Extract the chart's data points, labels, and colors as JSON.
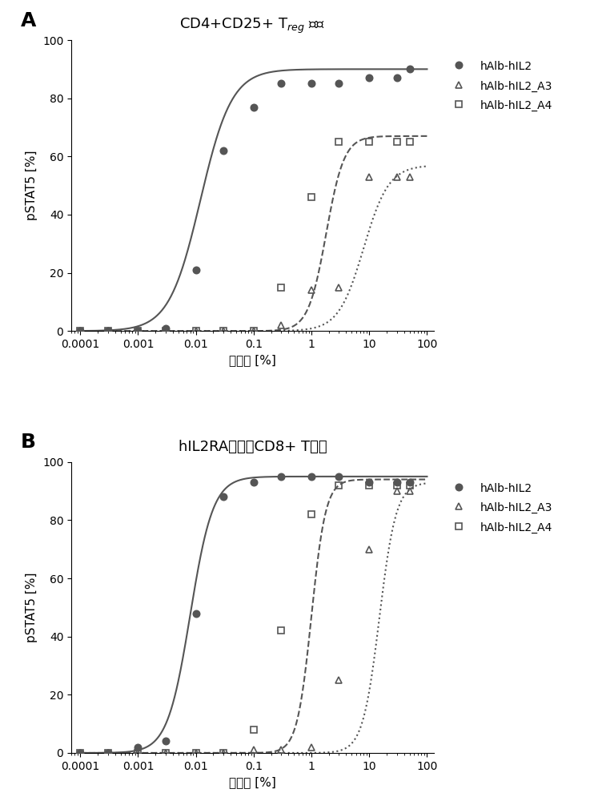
{
  "panel_A": {
    "title_parts": [
      "CD4+CD25+ T",
      "reg",
      " 细胞"
    ],
    "series": [
      {
        "label": "hAlb-hIL2",
        "x": [
          0.0001,
          0.0003,
          0.001,
          0.003,
          0.01,
          0.03,
          0.1,
          0.3,
          1,
          3,
          10,
          30,
          50
        ],
        "y": [
          0,
          0,
          0,
          1,
          21,
          62,
          77,
          85,
          85,
          85,
          87,
          87,
          90
        ],
        "marker": "o",
        "linestyle": "-",
        "color": "#555555",
        "fillstyle": "full",
        "ec50": 0.012,
        "hill": 1.6,
        "bottom": 0,
        "top": 90
      },
      {
        "label": "hAlb-hIL2_A3",
        "x": [
          0.0001,
          0.0003,
          0.001,
          0.003,
          0.01,
          0.03,
          0.1,
          0.3,
          1,
          3,
          10,
          30,
          50
        ],
        "y": [
          0,
          0,
          0,
          0,
          0,
          0,
          0,
          2,
          14,
          15,
          53,
          53,
          53
        ],
        "marker": "^",
        "linestyle": ":",
        "color": "#555555",
        "fillstyle": "none",
        "ec50": 8.0,
        "hill": 2.0,
        "bottom": 0,
        "top": 57
      },
      {
        "label": "hAlb-hIL2_A4",
        "x": [
          0.0001,
          0.0003,
          0.001,
          0.003,
          0.01,
          0.03,
          0.1,
          0.3,
          1,
          3,
          10,
          30,
          50
        ],
        "y": [
          0,
          0,
          0,
          0,
          0,
          0,
          0,
          15,
          46,
          65,
          65,
          65,
          65
        ],
        "marker": "s",
        "linestyle": "--",
        "color": "#555555",
        "fillstyle": "none",
        "ec50": 1.8,
        "hill": 2.8,
        "bottom": 0,
        "top": 67
      }
    ]
  },
  "panel_B": {
    "title": "hIL2RA转染的CD8+ T细胞",
    "series": [
      {
        "label": "hAlb-hIL2",
        "x": [
          0.0001,
          0.0003,
          0.001,
          0.003,
          0.01,
          0.03,
          0.1,
          0.3,
          1,
          3,
          10,
          30,
          50
        ],
        "y": [
          0,
          0,
          2,
          4,
          48,
          88,
          93,
          95,
          95,
          95,
          93,
          93,
          93
        ],
        "marker": "o",
        "linestyle": "-",
        "color": "#555555",
        "fillstyle": "full",
        "ec50": 0.008,
        "hill": 2.2,
        "bottom": 0,
        "top": 95
      },
      {
        "label": "hAlb-hIL2_A3",
        "x": [
          0.0001,
          0.0003,
          0.001,
          0.003,
          0.01,
          0.03,
          0.1,
          0.3,
          1,
          3,
          10,
          30,
          50
        ],
        "y": [
          0,
          0,
          0,
          0,
          0,
          0,
          1,
          1,
          2,
          25,
          70,
          90,
          90
        ],
        "marker": "^",
        "linestyle": ":",
        "color": "#555555",
        "fillstyle": "none",
        "ec50": 15.0,
        "hill": 3.0,
        "bottom": 0,
        "top": 93
      },
      {
        "label": "hAlb-hIL2_A4",
        "x": [
          0.0001,
          0.0003,
          0.001,
          0.003,
          0.01,
          0.03,
          0.1,
          0.3,
          1,
          3,
          10,
          30,
          50
        ],
        "y": [
          0,
          0,
          0,
          0,
          0,
          0,
          8,
          42,
          82,
          92,
          92,
          92,
          92
        ],
        "marker": "s",
        "linestyle": "--",
        "color": "#555555",
        "fillstyle": "none",
        "ec50": 1.0,
        "hill": 3.5,
        "bottom": 0,
        "top": 94
      }
    ]
  },
  "xlabel": "上清液 [%]",
  "ylabel": "pSTAT5 [%]",
  "ylim": [
    0,
    100
  ],
  "xticks": [
    0.0001,
    0.001,
    0.01,
    0.1,
    1,
    10,
    100
  ],
  "xtick_labels": [
    "0.0001",
    "0.001",
    "0.01",
    "0.1",
    "1",
    "10",
    "100"
  ],
  "yticks": [
    0,
    20,
    40,
    60,
    80,
    100
  ],
  "background_color": "#ffffff",
  "label_fontsize": 11,
  "tick_fontsize": 10,
  "title_fontsize": 13,
  "panel_label_fontsize": 18
}
